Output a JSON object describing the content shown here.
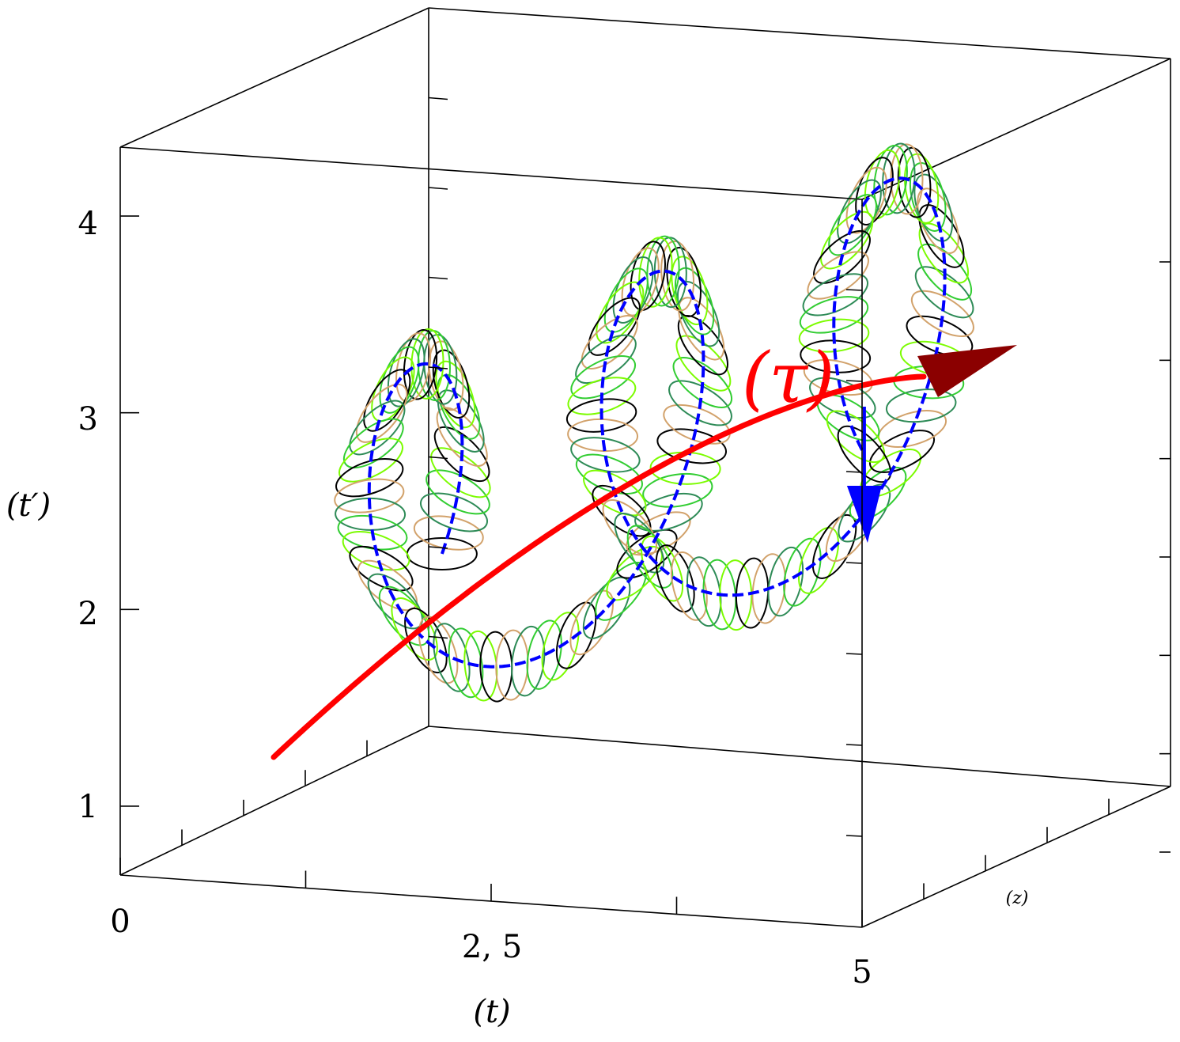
{
  "chart_data": {
    "type": "line",
    "title": "",
    "projection": "3d-box",
    "grid": false,
    "xlabel": "(t)",
    "ylabel": "(t′)",
    "zlabel": "(z)",
    "curve_label": "(τ)",
    "x_ticks": [
      "0",
      "2, 5",
      "5"
    ],
    "y_ticks": [
      "1",
      "2",
      "3",
      "4"
    ],
    "xlim": [
      0,
      5
    ],
    "ylim": [
      0.65,
      4.35
    ],
    "series": [
      {
        "name": "(τ)",
        "kind": "axis-curve",
        "color": "#ff0000",
        "arrow_color": "#8b0000"
      },
      {
        "kind": "helix-centerline",
        "color": "#0000ff"
      },
      {
        "kind": "tube-rings",
        "colors": [
          "#000000",
          "#d2a26b",
          "#2e8b57",
          "#32cd32",
          "#7cfc00"
        ]
      }
    ],
    "helix": {
      "turns": 2.6,
      "loop_count": 3
    }
  }
}
